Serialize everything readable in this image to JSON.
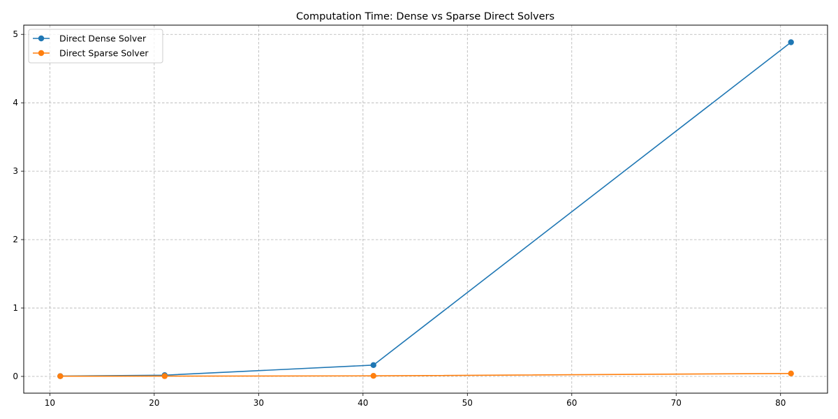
{
  "chart_data": {
    "type": "line",
    "title": "Computation Time: Dense vs Sparse Direct Solvers",
    "xlabel": "",
    "ylabel": "",
    "x": [
      11,
      21,
      41,
      81
    ],
    "xlim": [
      7.5,
      84.5
    ],
    "ylim": [
      -0.245,
      5.135
    ],
    "xticks": [
      10,
      20,
      30,
      40,
      50,
      60,
      70,
      80
    ],
    "yticks": [
      0,
      1,
      2,
      3,
      4,
      5
    ],
    "grid": true,
    "legend_position": "top-left",
    "series": [
      {
        "name": "Direct Dense Solver",
        "color": "#1f77b4",
        "values": [
          0.004,
          0.018,
          0.165,
          4.885
        ]
      },
      {
        "name": "Direct Sparse Solver",
        "color": "#ff7f0e",
        "values": [
          0.003,
          0.004,
          0.008,
          0.043
        ]
      }
    ]
  }
}
